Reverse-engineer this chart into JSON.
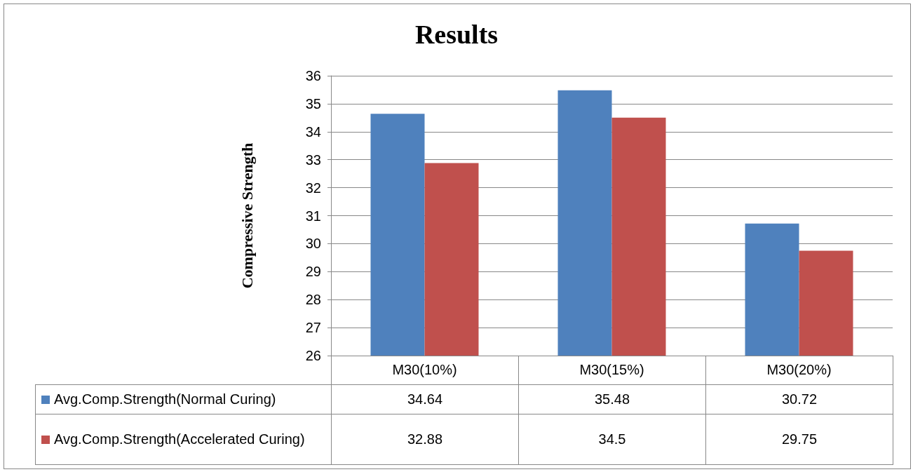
{
  "chart_data": {
    "type": "bar",
    "title": "Results",
    "ylabel": "Compressive Strength",
    "categories": [
      "M30(10%)",
      "M30(15%)",
      "M30(20%)"
    ],
    "series": [
      {
        "name": "Avg.Comp.Strength(Normal Curing)",
        "color": "#4f81bd",
        "values": [
          34.64,
          35.48,
          30.72
        ]
      },
      {
        "name": "Avg.Comp.Strength(Accelerated Curing)",
        "color": "#c0504d",
        "values": [
          32.88,
          34.5,
          29.75
        ]
      }
    ],
    "ylim": [
      26,
      36
    ],
    "yticks": [
      26,
      27,
      28,
      29,
      30,
      31,
      32,
      33,
      34,
      35,
      36
    ],
    "grid": "y",
    "legend": "bottom left",
    "data_labels": true
  }
}
